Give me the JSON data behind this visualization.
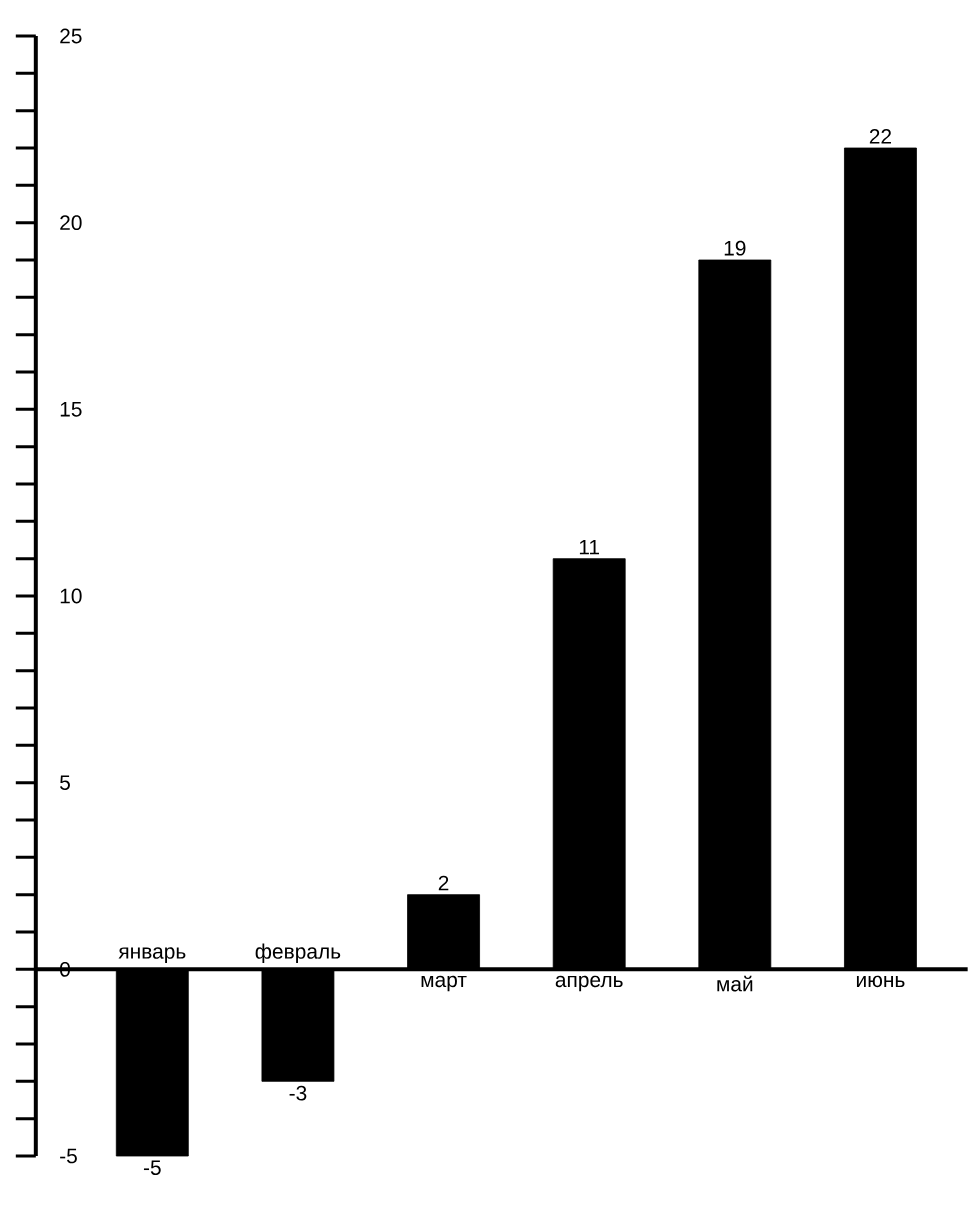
{
  "chart_data": {
    "type": "bar",
    "categories": [
      "январь",
      "февраль",
      "март",
      "апрель",
      "май",
      "июнь"
    ],
    "values": [
      -5,
      -3,
      2,
      11,
      19,
      22
    ],
    "color": "#000000",
    "data_labels": true,
    "ylim": [
      -5,
      25
    ],
    "yticks": [
      -5,
      {
        "value": -4,
        "label": null
      },
      {
        "value": -3,
        "label": null
      },
      {
        "value": -2,
        "label": null
      },
      {
        "value": -1,
        "label": null
      },
      0,
      {
        "value": 1,
        "label": null
      },
      {
        "value": 2,
        "label": null
      },
      {
        "value": 3,
        "label": null
      },
      {
        "value": 4,
        "label": null
      },
      5,
      {
        "value": 6,
        "label": null
      },
      {
        "value": 7,
        "label": null
      },
      {
        "value": 8,
        "label": null
      },
      {
        "value": 9,
        "label": null
      },
      10,
      {
        "value": 11,
        "label": null
      },
      {
        "value": 12,
        "label": null
      },
      {
        "value": 13,
        "label": null
      },
      {
        "value": 14,
        "label": null
      },
      15,
      {
        "value": 16,
        "label": null
      },
      {
        "value": 17,
        "label": null
      },
      {
        "value": 18,
        "label": null
      },
      {
        "value": 19,
        "label": null
      },
      20,
      {
        "value": 21,
        "label": null
      },
      {
        "value": 22,
        "label": null
      },
      {
        "value": 23,
        "label": null
      },
      {
        "value": 24,
        "label": null
      },
      25
    ]
  }
}
